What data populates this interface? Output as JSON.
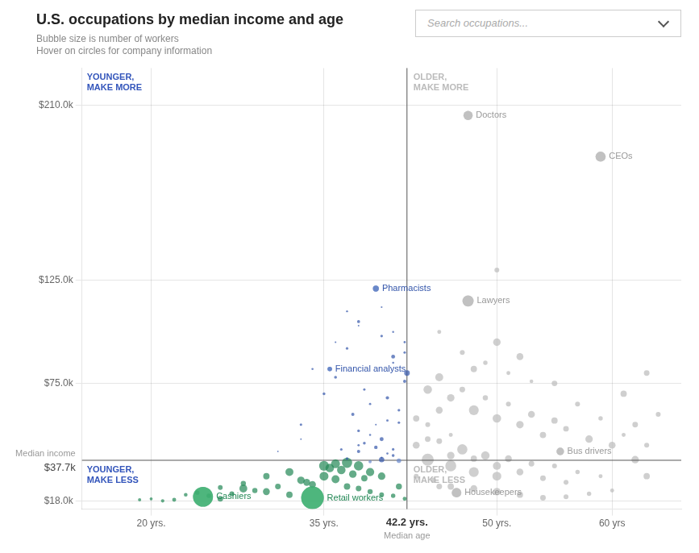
{
  "chart_data": {
    "type": "bubble",
    "title": "U.S. occupations by median income and age",
    "subtitle": [
      "Bubble size is number of workers",
      "Hover on circles for company information"
    ],
    "search_box_text": "Search occupations...",
    "xlabel": "Median age",
    "ylabel": "Median income",
    "xlim": [
      14,
      66
    ],
    "ylim": [
      14000,
      228000
    ],
    "xticks": [
      {
        "value": 20,
        "label": "20 yrs."
      },
      {
        "value": 35,
        "label": "35 yrs."
      },
      {
        "value": 50,
        "label": "50 yrs."
      },
      {
        "value": 60,
        "label": "60 yrs"
      }
    ],
    "yticks": [
      {
        "value": 18000,
        "label": "$18.0k"
      },
      {
        "value": 75000,
        "label": "$75.0k"
      },
      {
        "value": 125000,
        "label": "$125.0k"
      },
      {
        "value": 210000,
        "label": "$210.0k"
      }
    ],
    "grid": true,
    "median_lines": {
      "color": "#555555",
      "x": {
        "value": 42.2,
        "label": "42.2 yrs."
      },
      "y": {
        "value": 37700,
        "label": "$37.7k"
      }
    },
    "quadrant_labels": [
      {
        "text": "YOUNGER,\nMAKE MORE",
        "color": "#3355bb"
      },
      {
        "text": "OLDER,\nMAKE MORE",
        "color": "#bbbbbb"
      },
      {
        "text": "YOUNGER,\nMAKE LESS",
        "color": "#3355bb"
      },
      {
        "text": "OLDER,\nMAKE LESS",
        "color": "#bbbbbb"
      }
    ],
    "series": [
      {
        "color": "#bbbbbb",
        "x": [
          47.5,
          59.0,
          47.5,
          55.5,
          46.5,
          50,
          52,
          48,
          45,
          47,
          49,
          51,
          53,
          55,
          56,
          58,
          60,
          44,
          46,
          48,
          50,
          52,
          54,
          45,
          47,
          49,
          51,
          53,
          55,
          57,
          59,
          44,
          46,
          48,
          50,
          43,
          44,
          46,
          48,
          50,
          52,
          54,
          56,
          44.5,
          46,
          48,
          50,
          52,
          54,
          56,
          58,
          60,
          43,
          45,
          61,
          62,
          63,
          44,
          46,
          55,
          57,
          59,
          61,
          47,
          49,
          51,
          53,
          45,
          50,
          63,
          64,
          62,
          63,
          43,
          45
        ],
        "values": [
          205000,
          185000,
          115000,
          42000,
          22000,
          95000,
          88000,
          82000,
          78000,
          72000,
          68000,
          65000,
          60000,
          57000,
          53000,
          48000,
          45000,
          72000,
          68000,
          62000,
          58000,
          55000,
          50000,
          47000,
          43000,
          40000,
          38500,
          36000,
          35000,
          32000,
          30000,
          38000,
          35000,
          32000,
          30000,
          45000,
          48000,
          40000,
          38500,
          35000,
          32000,
          29000,
          27000,
          28000,
          25000,
          24000,
          22500,
          21000,
          19500,
          20000,
          21500,
          23000,
          30000,
          25000,
          70000,
          55000,
          45000,
          55000,
          50000,
          75000,
          65000,
          58000,
          50000,
          90000,
          85000,
          80000,
          76000,
          100000,
          130000,
          80000,
          60000,
          38000,
          30000,
          58000,
          62000
        ],
        "sizes": [
          750000,
          900000,
          1100000,
          500000,
          800000,
          500000,
          420000,
          350000,
          560000,
          280000,
          240000,
          210000,
          420000,
          350000,
          280000,
          490000,
          420000,
          640000,
          490000,
          850000,
          640000,
          490000,
          350000,
          280000,
          920000,
          640000,
          420000,
          280000,
          210000,
          170000,
          140000,
          1280000,
          1060000,
          850000,
          700000,
          420000,
          280000,
          490000,
          350000,
          560000,
          420000,
          280000,
          210000,
          240000,
          350000,
          420000,
          490000,
          350000,
          280000,
          210000,
          170000,
          140000,
          210000,
          280000,
          350000,
          280000,
          210000,
          210000,
          140000,
          280000,
          210000,
          170000,
          140000,
          210000,
          170000,
          140000,
          120000,
          140000,
          210000,
          280000,
          210000,
          490000,
          350000,
          350000,
          420000
        ]
      },
      {
        "color": "#228855",
        "x": [
          34.0,
          24.5,
          28,
          30,
          32,
          26,
          33,
          35,
          36,
          34,
          37,
          38,
          39,
          40,
          41,
          27,
          29,
          31,
          22,
          21,
          20,
          25,
          35,
          36.5,
          37.5,
          38.5,
          33.5,
          32,
          30,
          28,
          26,
          24,
          42,
          41.5,
          40,
          39,
          38,
          37,
          36,
          35.5,
          23,
          19
        ],
        "values": [
          19500,
          20000,
          24000,
          22500,
          21000,
          19000,
          28000,
          30000,
          28500,
          26000,
          25000,
          24000,
          22500,
          21000,
          20500,
          21500,
          23000,
          25000,
          18500,
          18000,
          19000,
          20500,
          35000,
          33000,
          31000,
          29000,
          27000,
          32000,
          30000,
          26500,
          24500,
          22000,
          19000,
          25000,
          30000,
          32000,
          35000,
          36500,
          36000,
          34000,
          21000,
          18500
        ],
        "sizes": [
          4500000,
          3500000,
          550000,
          420000,
          360000,
          280000,
          500000,
          700000,
          560000,
          420000,
          360000,
          280000,
          240000,
          200000,
          170000,
          210000,
          240000,
          280000,
          140000,
          100000,
          80000,
          170000,
          850000,
          640000,
          490000,
          350000,
          420000,
          560000,
          360000,
          240000,
          200000,
          160000,
          140000,
          320000,
          490000,
          600000,
          780000,
          920000,
          700000,
          640000,
          120000,
          90000
        ]
      },
      {
        "colors": [
          "#3355aa",
          "#3355aa",
          "#3355aa",
          "#3355aa",
          "#3355aa",
          "#3355aa",
          "#3355aa",
          "#3355aa",
          "#3355aa",
          "#3355aa",
          "#3355aa",
          "#3355aa",
          "#3355aa",
          "#3355aa",
          "#3355aa",
          "#3355aa",
          "#3355aa",
          "#3355aa",
          "#3355aa",
          "#6688cc",
          "#6688cc",
          "#3355aa",
          "#3355aa",
          "#3355aa",
          "#3355aa",
          "#3355aa",
          "#3355aa",
          "#3355aa",
          "#3355aa",
          "#3355aa",
          "#3355aa",
          "#3355aa",
          "#3355aa",
          "#3355aa",
          "#3355aa",
          "#3355aa",
          "#3355aa",
          "#3355aa",
          "#3355aa",
          "#3355aa",
          "#3355aa",
          "#3355aa",
          "#3355aa",
          "#3355aa",
          "#3355aa",
          "#3355aa"
        ],
        "x": [
          39.5,
          35.5,
          38,
          40,
          37,
          41,
          36,
          38.5,
          40.5,
          39,
          37.5,
          41.5,
          38,
          40,
          39.5,
          38,
          41,
          37,
          40,
          41.5,
          39,
          38.5,
          36.5,
          40.5,
          33,
          35,
          34,
          36,
          37,
          38,
          42,
          41,
          42.2,
          42,
          41.5,
          40.5,
          39,
          38,
          41,
          40,
          39.5,
          33,
          31,
          42,
          41,
          40
        ],
        "values": [
          121000,
          82000,
          105000,
          98000,
          92000,
          88000,
          78000,
          72000,
          68000,
          65000,
          60000,
          56000,
          52000,
          48000,
          44000,
          42000,
          40000,
          38500,
          38000,
          37500,
          37000,
          46000,
          43000,
          41000,
          55000,
          70000,
          82000,
          95000,
          110000,
          103000,
          90000,
          85000,
          80000,
          76000,
          62000,
          57000,
          50000,
          45000,
          43000,
          39000,
          55000,
          48000,
          42000,
          95000,
          100000,
          112000
        ],
        "sizes": [
          310000,
          180000,
          80000,
          60000,
          55000,
          130000,
          75000,
          50000,
          100000,
          45000,
          90000,
          55000,
          65000,
          140000,
          110000,
          95000,
          75000,
          60000,
          250000,
          180000,
          85000,
          70000,
          55000,
          40000,
          55000,
          70000,
          40000,
          28000,
          35000,
          22000,
          55000,
          38000,
          280000,
          90000,
          65000,
          50000,
          38000,
          45000,
          58000,
          32000,
          25000,
          22000,
          18000,
          45000,
          35000,
          28000
        ]
      }
    ],
    "labeled_points": [
      {
        "text": "Pharmacists",
        "x": 39.5,
        "y": 121000,
        "size": 310000,
        "color": "#6688cc",
        "text_color": "#3355aa"
      },
      {
        "text": "Financial analysts",
        "x": 35.5,
        "y": 82000,
        "size": 180000,
        "color": "#6688cc",
        "text_color": "#3355aa"
      },
      {
        "text": "Doctors",
        "x": 47.5,
        "y": 205000,
        "size": 750000,
        "color": "#bbbbbb",
        "text_color": "#999999"
      },
      {
        "text": "CEOs",
        "x": 59.0,
        "y": 185000,
        "size": 900000,
        "color": "#bbbbbb",
        "text_color": "#999999"
      },
      {
        "text": "Lawyers",
        "x": 47.5,
        "y": 115000,
        "size": 1100000,
        "color": "#bbbbbb",
        "text_color": "#999999"
      },
      {
        "text": "Cashiers",
        "x": 24.5,
        "y": 20000,
        "size": 3500000,
        "color": "#44bb77",
        "text_color": "#228855"
      },
      {
        "text": "Retail workers",
        "x": 34.0,
        "y": 19500,
        "size": 4500000,
        "color": "#44bb77",
        "text_color": "#228855"
      },
      {
        "text": "Bus drivers",
        "x": 55.5,
        "y": 42000,
        "size": 500000,
        "color": "#bbbbbb",
        "text_color": "#999999"
      },
      {
        "text": "Housekeepers",
        "x": 46.5,
        "y": 22000,
        "size": 800000,
        "color": "#bbbbbb",
        "text_color": "#999999"
      }
    ]
  }
}
